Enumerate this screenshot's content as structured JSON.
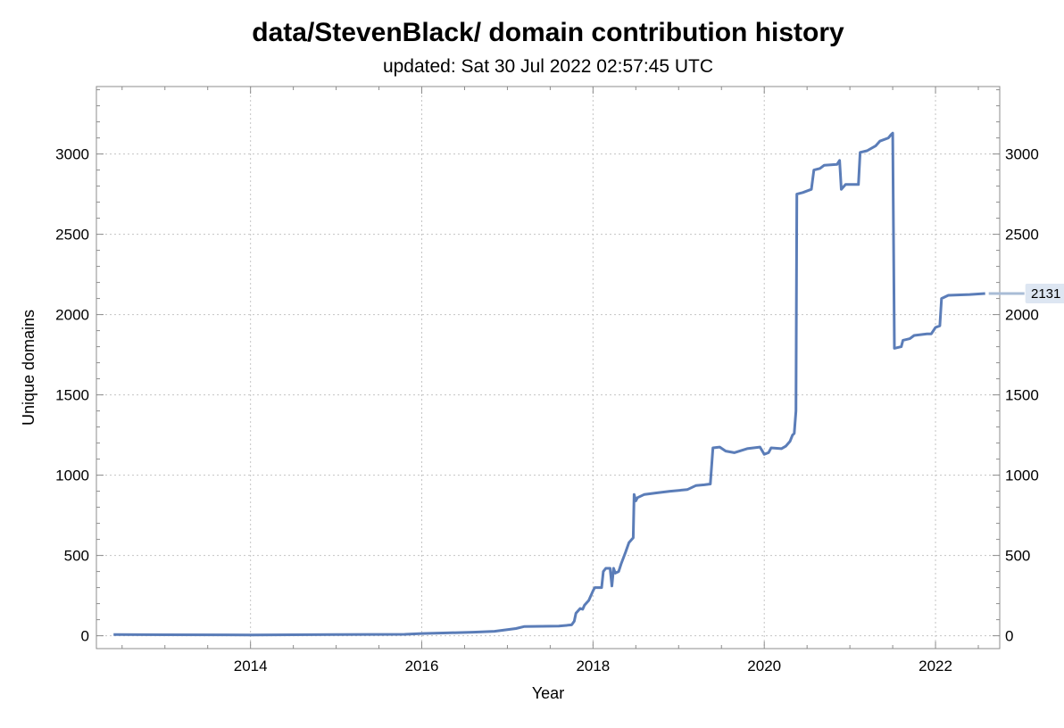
{
  "chart_data": {
    "type": "line",
    "title": "data/StevenBlack/ domain contribution history",
    "subtitle": "updated: Sat 30 Jul 2022 02:57:45 UTC",
    "xlabel": "Year",
    "ylabel": "Unique domains",
    "xlim": [
      2012.2,
      2022.75
    ],
    "ylim": [
      -80,
      3420
    ],
    "x_ticks": [
      2014,
      2016,
      2018,
      2020,
      2022
    ],
    "y_ticks": [
      0,
      500,
      1000,
      1500,
      2000,
      2500,
      3000
    ],
    "grid": true,
    "end_value_label": "2131",
    "line_color": "#5b7db8",
    "series": [
      {
        "points": [
          [
            2012.4,
            8
          ],
          [
            2013.0,
            6
          ],
          [
            2014.0,
            5
          ],
          [
            2015.0,
            7
          ],
          [
            2015.8,
            9
          ],
          [
            2016.0,
            14
          ],
          [
            2016.3,
            18
          ],
          [
            2016.6,
            22
          ],
          [
            2016.85,
            28
          ],
          [
            2017.0,
            38
          ],
          [
            2017.1,
            45
          ],
          [
            2017.2,
            58
          ],
          [
            2017.6,
            60
          ],
          [
            2017.75,
            68
          ],
          [
            2017.78,
            90
          ],
          [
            2017.8,
            140
          ],
          [
            2017.85,
            170
          ],
          [
            2017.88,
            165
          ],
          [
            2017.9,
            190
          ],
          [
            2017.95,
            220
          ],
          [
            2018.0,
            280
          ],
          [
            2018.02,
            300
          ],
          [
            2018.1,
            300
          ],
          [
            2018.12,
            400
          ],
          [
            2018.15,
            420
          ],
          [
            2018.2,
            420
          ],
          [
            2018.22,
            310
          ],
          [
            2018.24,
            420
          ],
          [
            2018.26,
            390
          ],
          [
            2018.3,
            400
          ],
          [
            2018.33,
            450
          ],
          [
            2018.38,
            520
          ],
          [
            2018.42,
            580
          ],
          [
            2018.47,
            610
          ],
          [
            2018.48,
            880
          ],
          [
            2018.5,
            840
          ],
          [
            2018.52,
            860
          ],
          [
            2018.6,
            880
          ],
          [
            2018.75,
            890
          ],
          [
            2018.9,
            900
          ],
          [
            2019.1,
            910
          ],
          [
            2019.2,
            935
          ],
          [
            2019.3,
            940
          ],
          [
            2019.37,
            945
          ],
          [
            2019.4,
            1170
          ],
          [
            2019.48,
            1175
          ],
          [
            2019.55,
            1150
          ],
          [
            2019.65,
            1140
          ],
          [
            2019.8,
            1165
          ],
          [
            2019.95,
            1175
          ],
          [
            2020.0,
            1130
          ],
          [
            2020.05,
            1140
          ],
          [
            2020.08,
            1170
          ],
          [
            2020.2,
            1165
          ],
          [
            2020.25,
            1180
          ],
          [
            2020.3,
            1210
          ],
          [
            2020.33,
            1250
          ],
          [
            2020.35,
            1260
          ],
          [
            2020.37,
            1400
          ],
          [
            2020.38,
            2750
          ],
          [
            2020.45,
            2760
          ],
          [
            2020.55,
            2780
          ],
          [
            2020.58,
            2900
          ],
          [
            2020.65,
            2910
          ],
          [
            2020.7,
            2930
          ],
          [
            2020.85,
            2935
          ],
          [
            2020.88,
            2960
          ],
          [
            2020.9,
            2780
          ],
          [
            2020.95,
            2810
          ],
          [
            2021.1,
            2810
          ],
          [
            2021.12,
            3010
          ],
          [
            2021.2,
            3020
          ],
          [
            2021.3,
            3050
          ],
          [
            2021.35,
            3080
          ],
          [
            2021.45,
            3100
          ],
          [
            2021.48,
            3120
          ],
          [
            2021.5,
            3130
          ],
          [
            2021.52,
            1790
          ],
          [
            2021.6,
            1800
          ],
          [
            2021.62,
            1840
          ],
          [
            2021.7,
            1850
          ],
          [
            2021.75,
            1870
          ],
          [
            2021.9,
            1880
          ],
          [
            2021.95,
            1880
          ],
          [
            2022.0,
            1920
          ],
          [
            2022.05,
            1930
          ],
          [
            2022.07,
            2100
          ],
          [
            2022.15,
            2120
          ],
          [
            2022.4,
            2125
          ],
          [
            2022.58,
            2131
          ]
        ]
      }
    ]
  }
}
